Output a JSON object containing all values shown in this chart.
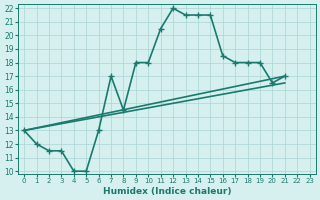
{
  "xlabel": "Humidex (Indice chaleur)",
  "xlim": [
    -0.5,
    23.5
  ],
  "ylim": [
    9.8,
    22.3
  ],
  "xticks": [
    0,
    1,
    2,
    3,
    4,
    5,
    6,
    7,
    8,
    9,
    10,
    11,
    12,
    13,
    14,
    15,
    16,
    17,
    18,
    19,
    20,
    21,
    22,
    23
  ],
  "yticks": [
    10,
    11,
    12,
    13,
    14,
    15,
    16,
    17,
    18,
    19,
    20,
    21,
    22
  ],
  "line_color": "#1a7a6e",
  "bg_color": "#d6efef",
  "grid_color": "#aad4d4",
  "line1_x": [
    0,
    1,
    2,
    3,
    4,
    5,
    6,
    7,
    8,
    9,
    10,
    11,
    12,
    13,
    14,
    15,
    16,
    17,
    18,
    19,
    20,
    21
  ],
  "line1_y": [
    13,
    12,
    11.5,
    11.5,
    10,
    10.0,
    13,
    17,
    14.5,
    18,
    18,
    20.5,
    22,
    21.5,
    21.5,
    21.5,
    18.5,
    18,
    18,
    18,
    16.5,
    17
  ],
  "line2_x": [
    0,
    21
  ],
  "line2_y": [
    13,
    17
  ],
  "line3_x": [
    0,
    21
  ],
  "line3_y": [
    13,
    16.5
  ],
  "line_width": 1.2,
  "marker_size": 4
}
